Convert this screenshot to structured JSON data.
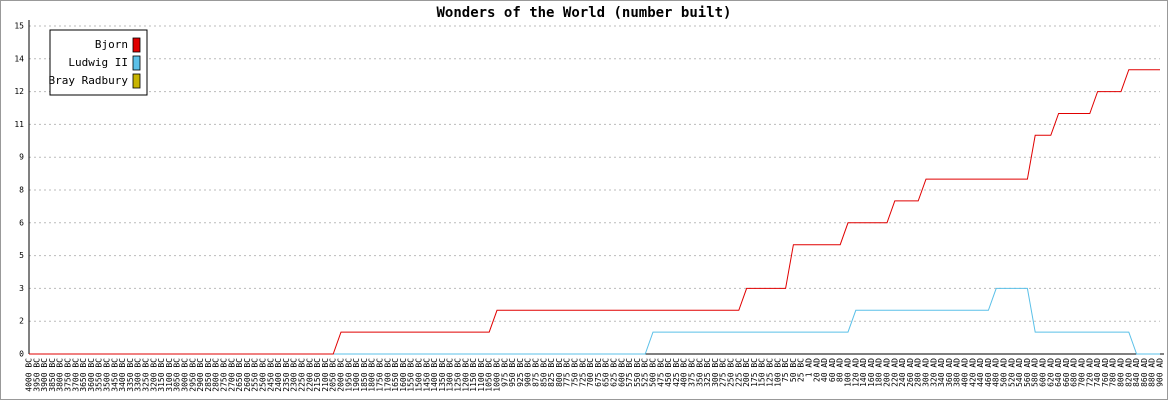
{
  "chart_data": {
    "type": "line",
    "title": "Wonders of the World (number built)",
    "categories": [
      "4000 BC",
      "3950 BC",
      "3900 BC",
      "3850 BC",
      "3800 BC",
      "3750 BC",
      "3700 BC",
      "3650 BC",
      "3600 BC",
      "3550 BC",
      "3500 BC",
      "3450 BC",
      "3400 BC",
      "3350 BC",
      "3300 BC",
      "3250 BC",
      "3200 BC",
      "3150 BC",
      "3100 BC",
      "3050 BC",
      "3000 BC",
      "2950 BC",
      "2900 BC",
      "2850 BC",
      "2800 BC",
      "2750 BC",
      "2700 BC",
      "2650 BC",
      "2600 BC",
      "2550 BC",
      "2500 BC",
      "2450 BC",
      "2400 BC",
      "2350 BC",
      "2300 BC",
      "2250 BC",
      "2200 BC",
      "2150 BC",
      "2100 BC",
      "2050 BC",
      "2000 BC",
      "1950 BC",
      "1900 BC",
      "1850 BC",
      "1800 BC",
      "1750 BC",
      "1700 BC",
      "1650 BC",
      "1600 BC",
      "1550 BC",
      "1500 BC",
      "1450 BC",
      "1400 BC",
      "1350 BC",
      "1300 BC",
      "1250 BC",
      "1200 BC",
      "1150 BC",
      "1100 BC",
      "1050 BC",
      "1000 BC",
      "975 BC",
      "950 BC",
      "925 BC",
      "900 BC",
      "875 BC",
      "850 BC",
      "825 BC",
      "800 BC",
      "775 BC",
      "750 BC",
      "725 BC",
      "700 BC",
      "675 BC",
      "650 BC",
      "625 BC",
      "600 BC",
      "575 BC",
      "550 BC",
      "525 BC",
      "500 BC",
      "475 BC",
      "450 BC",
      "425 BC",
      "400 BC",
      "375 BC",
      "350 BC",
      "325 BC",
      "300 BC",
      "275 BC",
      "250 BC",
      "225 BC",
      "200 BC",
      "175 BC",
      "150 BC",
      "125 BC",
      "100 BC",
      "75 BC",
      "50 BC",
      "25 BC",
      "1 AD",
      "20 AD",
      "40 AD",
      "60 AD",
      "80 AD",
      "100 AD",
      "120 AD",
      "140 AD",
      "160 AD",
      "180 AD",
      "200 AD",
      "220 AD",
      "240 AD",
      "260 AD",
      "280 AD",
      "300 AD",
      "320 AD",
      "340 AD",
      "360 AD",
      "380 AD",
      "400 AD",
      "420 AD",
      "440 AD",
      "460 AD",
      "480 AD",
      "500 AD",
      "520 AD",
      "540 AD",
      "560 AD",
      "580 AD",
      "600 AD",
      "620 AD",
      "640 AD",
      "660 AD",
      "680 AD",
      "700 AD",
      "720 AD",
      "740 AD",
      "760 AD",
      "780 AD",
      "800 AD",
      "820 AD",
      "840 AD",
      "860 AD",
      "880 AD",
      "900 AD"
    ],
    "series": [
      {
        "name": "Bjorn",
        "color": "#e00000",
        "values": [
          0,
          0,
          0,
          0,
          0,
          0,
          0,
          0,
          0,
          0,
          0,
          0,
          0,
          0,
          0,
          0,
          0,
          0,
          0,
          0,
          0,
          0,
          0,
          0,
          0,
          0,
          0,
          0,
          0,
          0,
          0,
          0,
          0,
          0,
          0,
          0,
          0,
          0,
          0,
          0,
          1,
          1,
          1,
          1,
          1,
          1,
          1,
          1,
          1,
          1,
          1,
          1,
          1,
          1,
          1,
          1,
          1,
          1,
          1,
          1,
          2,
          2,
          2,
          2,
          2,
          2,
          2,
          2,
          2,
          2,
          2,
          2,
          2,
          2,
          2,
          2,
          2,
          2,
          2,
          2,
          2,
          2,
          2,
          2,
          2,
          2,
          2,
          2,
          2,
          2,
          2,
          2,
          3,
          3,
          3,
          3,
          3,
          3,
          5,
          5,
          5,
          5,
          5,
          5,
          5,
          6,
          6,
          6,
          6,
          6,
          6,
          7,
          7,
          7,
          7,
          8,
          8,
          8,
          8,
          8,
          8,
          8,
          8,
          8,
          8,
          8,
          8,
          8,
          8,
          10,
          10,
          10,
          11,
          11,
          11,
          11,
          11,
          12,
          12,
          12,
          12,
          13,
          13,
          13,
          13,
          13
        ]
      },
      {
        "name": "Ludwig II",
        "color": "#5bc0e8",
        "values": [
          0,
          0,
          0,
          0,
          0,
          0,
          0,
          0,
          0,
          0,
          0,
          0,
          0,
          0,
          0,
          0,
          0,
          0,
          0,
          0,
          0,
          0,
          0,
          0,
          0,
          0,
          0,
          0,
          0,
          0,
          0,
          0,
          0,
          0,
          0,
          0,
          0,
          0,
          0,
          0,
          0,
          0,
          0,
          0,
          0,
          0,
          0,
          0,
          0,
          0,
          0,
          0,
          0,
          0,
          0,
          0,
          0,
          0,
          0,
          0,
          0,
          0,
          0,
          0,
          0,
          0,
          0,
          0,
          0,
          0,
          0,
          0,
          0,
          0,
          0,
          0,
          0,
          0,
          0,
          0,
          1,
          1,
          1,
          1,
          1,
          1,
          1,
          1,
          1,
          1,
          1,
          1,
          1,
          1,
          1,
          1,
          1,
          1,
          1,
          1,
          1,
          1,
          1,
          1,
          1,
          1,
          2,
          2,
          2,
          2,
          2,
          2,
          2,
          2,
          2,
          2,
          2,
          2,
          2,
          2,
          2,
          2,
          2,
          2,
          3,
          3,
          3,
          3,
          3,
          1,
          1,
          1,
          1,
          1,
          1,
          1,
          1,
          1,
          1,
          1,
          1,
          1,
          0,
          0,
          0,
          0
        ]
      },
      {
        "name": "Bray Radbury",
        "color": "#c8b400",
        "values": [
          0,
          0,
          0,
          0,
          0,
          0,
          0,
          0,
          0,
          0,
          0,
          0,
          0,
          0,
          0,
          0,
          0,
          0,
          0,
          0,
          0,
          0,
          0,
          0,
          0,
          0,
          0,
          0,
          0,
          0,
          0,
          0,
          0,
          0,
          0,
          0,
          0,
          0,
          0,
          0,
          0,
          null,
          null,
          null,
          null,
          null,
          null,
          null,
          null,
          null,
          null,
          null,
          null,
          null,
          null,
          null,
          null,
          null,
          null,
          null,
          null,
          null,
          null,
          null,
          null,
          null,
          null,
          null,
          null,
          null,
          null,
          null,
          null,
          null,
          null,
          null,
          null,
          null,
          null,
          null,
          null,
          null,
          null,
          null,
          null,
          null,
          null,
          null,
          null,
          null,
          null,
          null,
          null,
          null,
          null,
          null,
          null,
          null,
          null,
          null,
          null,
          null,
          null,
          null,
          null,
          null,
          null,
          null,
          null,
          null,
          null,
          null,
          null,
          null,
          null,
          null,
          null,
          null,
          null,
          null,
          null,
          null,
          null,
          null,
          null,
          null,
          null,
          null,
          null,
          null,
          null,
          null,
          null,
          null,
          null,
          null,
          null,
          null,
          null,
          null,
          null,
          null,
          null,
          null,
          null,
          null
        ]
      }
    ],
    "ylim": [
      0,
      15
    ],
    "yticks": [
      0,
      {
        "value": 1.5,
        "label": "2"
      },
      3,
      {
        "value": 4.5,
        "label": "5"
      },
      6,
      {
        "value": 7.5,
        "label": "8"
      },
      9,
      {
        "value": 10.5,
        "label": "11"
      },
      12,
      {
        "value": 13.5,
        "label": "14"
      },
      15
    ],
    "grid": true,
    "legend": "upper left"
  }
}
